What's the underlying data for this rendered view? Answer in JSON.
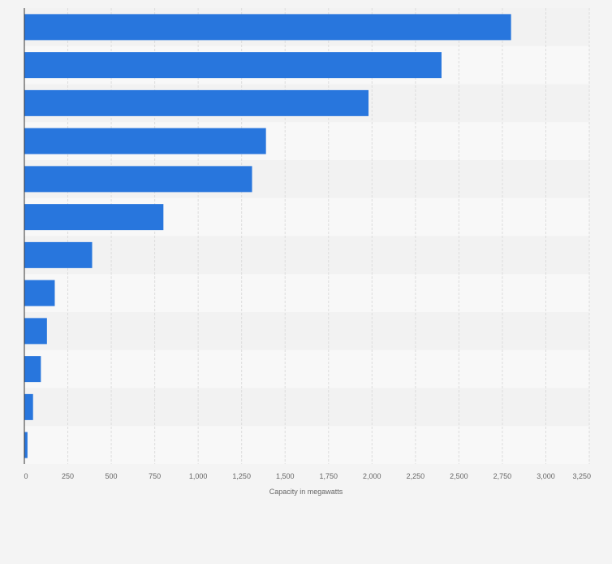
{
  "chart_data": {
    "type": "bar",
    "orientation": "horizontal",
    "title": "",
    "xlabel": "Capacity in megawatts",
    "ylabel": "",
    "categories": [
      "",
      "",
      "",
      "",
      "",
      "",
      "",
      "",
      "",
      "",
      "",
      ""
    ],
    "values": [
      2800,
      2400,
      1980,
      1390,
      1310,
      800,
      390,
      175,
      130,
      95,
      50,
      18
    ],
    "xlim": [
      0,
      3250
    ],
    "xticks": [
      0,
      250,
      500,
      750,
      1000,
      1250,
      1500,
      1750,
      2000,
      2250,
      2500,
      2750,
      3000,
      3250
    ],
    "xtick_labels": [
      "0",
      "250",
      "500",
      "750",
      "1,000",
      "1,250",
      "1,500",
      "1,750",
      "2,000",
      "2,250",
      "2,500",
      "2,750",
      "3,000",
      "3,250"
    ],
    "grid": true,
    "bar_color": "#2876dd",
    "band_colors": [
      "#f2f2f2",
      "#f8f8f8"
    ],
    "gridline_color": "#dcdcdc"
  }
}
